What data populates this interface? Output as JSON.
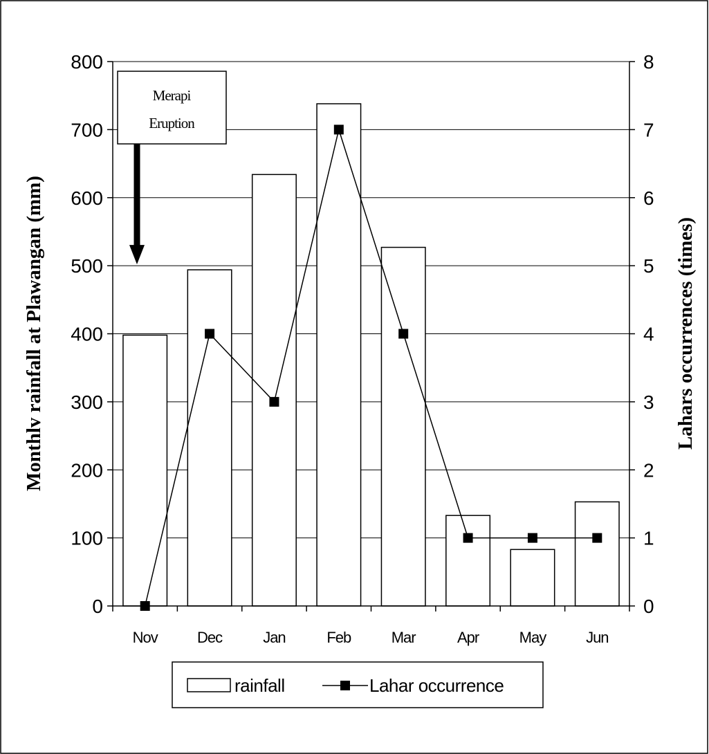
{
  "chart_data": {
    "type": "bar",
    "title": "",
    "categories": [
      "Nov",
      "Dec",
      "Jan",
      "Feb",
      "Mar",
      "Apr",
      "May",
      "Jun"
    ],
    "series": [
      {
        "name": "rainfall",
        "type": "bar",
        "axis": "left",
        "values": [
          398,
          494,
          634,
          738,
          527,
          133,
          83,
          153
        ]
      },
      {
        "name": "Lahar occurrence",
        "type": "line",
        "marker": "square",
        "axis": "right",
        "values": [
          0,
          4,
          3,
          7,
          4,
          1,
          1,
          1
        ]
      }
    ],
    "ylabel": "Monthlv rainfall at Plawangan (mm)",
    "y2label": "Lahars occurrences (times)",
    "ylim": [
      0,
      800
    ],
    "y2lim": [
      0,
      8
    ],
    "yticks": [
      "0",
      "100",
      "200",
      "300",
      "400",
      "500",
      "600",
      "700",
      "800"
    ],
    "y2ticks": [
      "0",
      "1",
      "2",
      "3",
      "4",
      "5",
      "6",
      "7",
      "8"
    ],
    "grid": true,
    "legend": "bottom",
    "annotation": {
      "lines": [
        "Merapi",
        "Eruption"
      ],
      "target_category": "Nov",
      "target_value": 500
    }
  }
}
